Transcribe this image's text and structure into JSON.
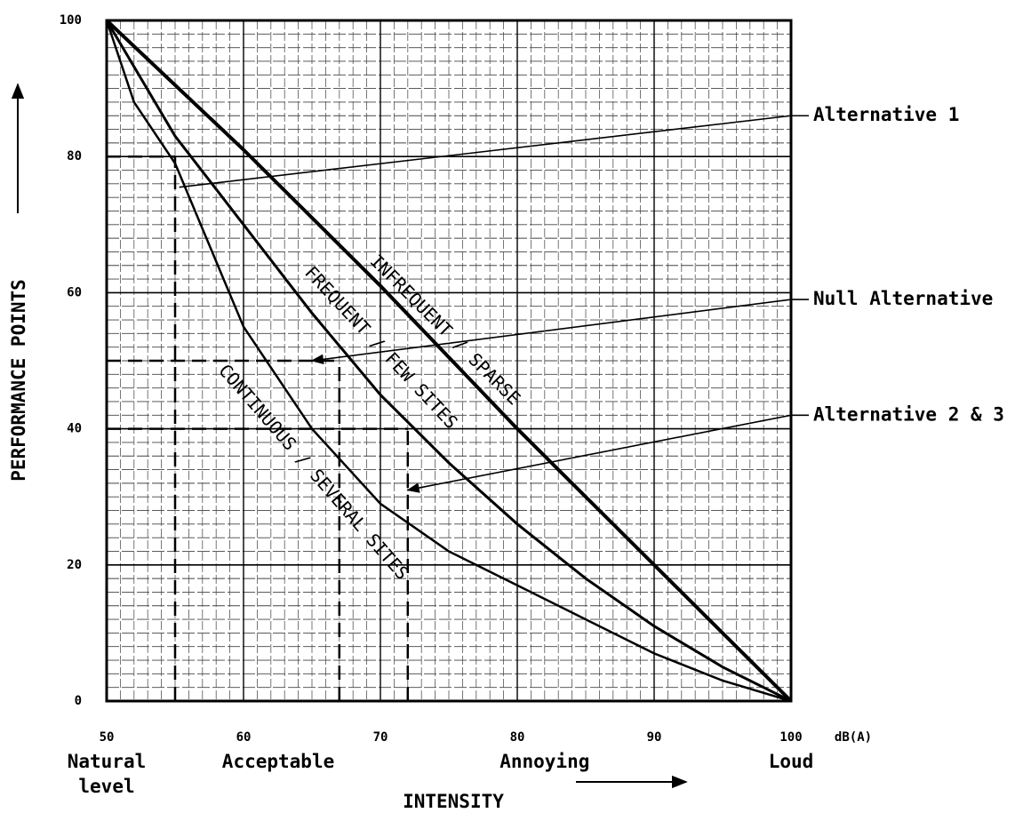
{
  "chart_data": {
    "type": "line",
    "x_label": "INTENSITY",
    "y_label": "PERFORMANCE POINTS",
    "x_unit": "dB(A)",
    "xlim": [
      50,
      100
    ],
    "xticks": [
      50,
      60,
      70,
      80,
      90,
      100
    ],
    "ylim": [
      0,
      100
    ],
    "yticks": [
      0,
      20,
      40,
      60,
      80,
      100
    ],
    "grid": true,
    "x_region_labels": [
      {
        "value": 50,
        "label": "Natural level"
      },
      {
        "value": 62,
        "label": "Acceptable"
      },
      {
        "value": 82,
        "label": "Annoying"
      },
      {
        "value": 100,
        "label": "Loud"
      }
    ],
    "series": [
      {
        "name": "INFREQUENT / SPARSE",
        "color": "#000000",
        "x": [
          50,
          60,
          70,
          80,
          90,
          100
        ],
        "values": [
          100,
          81,
          61,
          40,
          20,
          0
        ]
      },
      {
        "name": "FREQUENT / FEW SITES",
        "color": "#000000",
        "x": [
          50,
          55,
          60,
          65,
          70,
          75,
          80,
          85,
          90,
          95,
          100
        ],
        "values": [
          100,
          83,
          70,
          57,
          45,
          35,
          26,
          18,
          11,
          5,
          0
        ]
      },
      {
        "name": "CONTINUOUS / SEVERAL SITES",
        "color": "#000000",
        "x": [
          50,
          52,
          55,
          60,
          65,
          70,
          75,
          80,
          85,
          90,
          95,
          100
        ],
        "values": [
          100,
          88,
          79,
          55,
          40,
          29,
          22,
          17,
          12,
          7,
          3,
          0
        ]
      }
    ],
    "reference_lines": [
      {
        "x": 55,
        "y": 80
      },
      {
        "x": 67,
        "y": 50
      },
      {
        "x": 72,
        "y": 40
      }
    ],
    "annotations": [
      {
        "text": "Alternative 1",
        "from": [
          55.3,
          75.5
        ],
        "to": [
          100,
          86
        ],
        "arrow": false
      },
      {
        "text": "Null Alternative",
        "from": [
          65,
          50
        ],
        "to": [
          100,
          59
        ],
        "arrow": true
      },
      {
        "text": "Alternative 2 & 3",
        "from": [
          72,
          31
        ],
        "to": [
          100,
          42
        ],
        "arrow": true
      }
    ]
  }
}
